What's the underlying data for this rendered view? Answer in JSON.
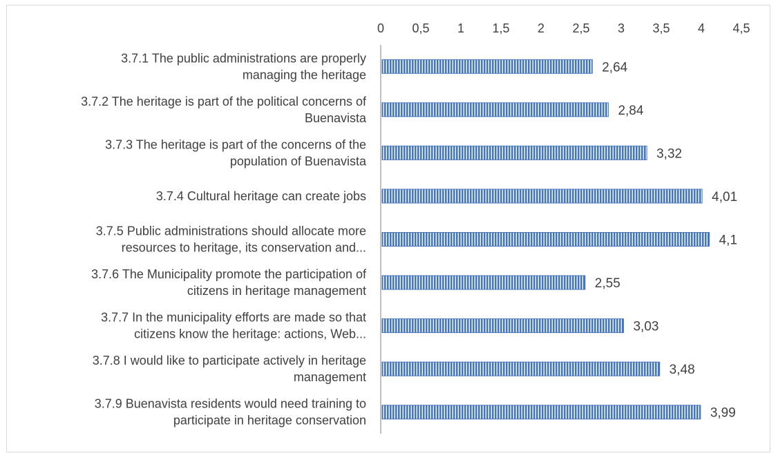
{
  "chart_data": {
    "type": "bar",
    "orientation": "horizontal",
    "x_axis_position": "top",
    "xlim": [
      0,
      4.5
    ],
    "x_ticks": [
      "0",
      "0,5",
      "1",
      "1,5",
      "2",
      "2,5",
      "3",
      "3,5",
      "4",
      "4,5"
    ],
    "grid": false,
    "legend": "none",
    "bar_color": "#4a74b8",
    "categories": [
      [
        "3.7.1 The public administrations are properly",
        "managing the heritage"
      ],
      [
        "3.7.2 The heritage is part of the political concerns of",
        "Buenavista"
      ],
      [
        "3.7.3 The heritage is part of the concerns of the",
        "population of Buenavista"
      ],
      [
        "3.7.4 Cultural heritage can create jobs"
      ],
      [
        "3.7.5 Public administrations should allocate more",
        "resources to heritage, its conservation and..."
      ],
      [
        "3.7.6 The Municipality promote the participation of",
        "citizens in heritage management"
      ],
      [
        "3.7.7 In the municipality efforts are made so that",
        "citizens know the heritage: actions, Web..."
      ],
      [
        "3.7.8 I would like to participate actively in heritage",
        "management"
      ],
      [
        "3.7.9 Buenavista residents would need training to",
        "participate in heritage conservation"
      ]
    ],
    "values": [
      2.64,
      2.84,
      3.32,
      4.01,
      4.1,
      2.55,
      3.03,
      3.48,
      3.99
    ],
    "value_labels": [
      "2,64",
      "2,84",
      "3,32",
      "4,01",
      "4,1",
      "2,55",
      "3,03",
      "3,48",
      "3,99"
    ]
  }
}
